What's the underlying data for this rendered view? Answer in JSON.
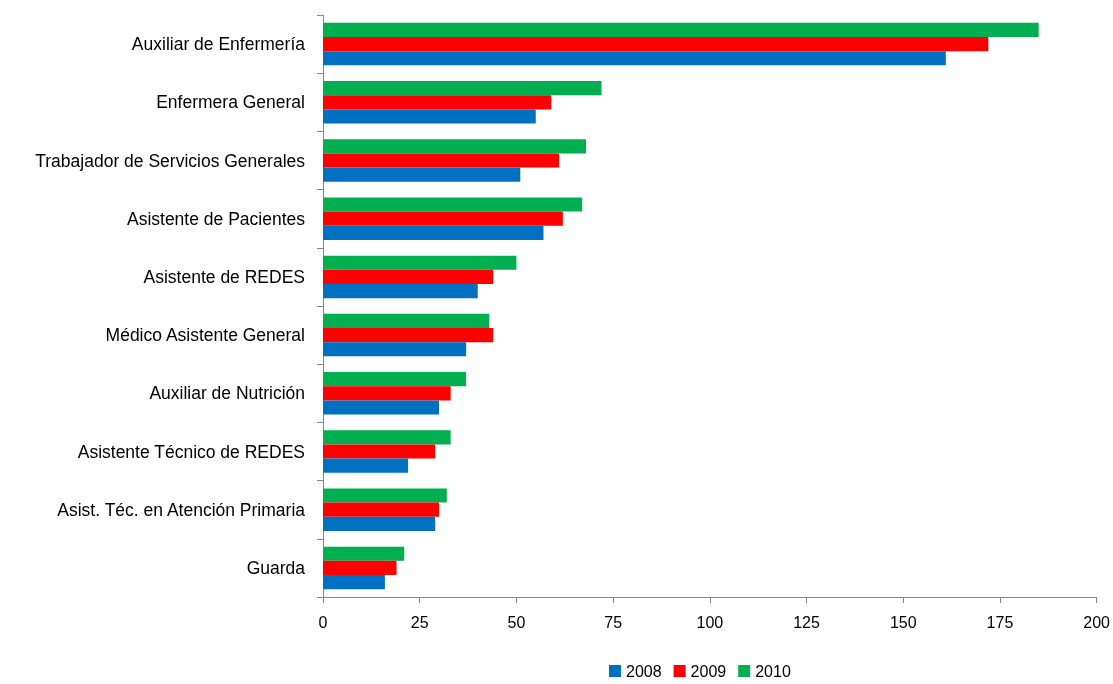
{
  "chart_data": {
    "type": "bar",
    "orientation": "horizontal",
    "categories": [
      "Auxiliar de Enfermería",
      "Enfermera General",
      "Trabajador de Servicios Generales",
      "Asistente de Pacientes",
      "Asistente de REDES",
      "Médico Asistente General",
      "Auxiliar de Nutrición",
      "Asistente Técnico de REDES",
      "Asist. Téc. en Atención Primaria",
      "Guarda"
    ],
    "series": [
      {
        "name": "2008",
        "color": "#0070c0",
        "values": [
          161,
          55,
          51,
          57,
          40,
          37,
          30,
          22,
          29,
          16
        ]
      },
      {
        "name": "2009",
        "color": "#ff0000",
        "values": [
          172,
          59,
          61,
          62,
          44,
          44,
          33,
          29,
          30,
          19
        ]
      },
      {
        "name": "2010",
        "color": "#00b050",
        "values": [
          185,
          72,
          68,
          67,
          50,
          43,
          37,
          33,
          32,
          21
        ]
      }
    ],
    "xlim": [
      0,
      200
    ],
    "xticks": [
      0,
      25,
      50,
      75,
      100,
      125,
      150,
      175,
      200
    ],
    "legend": "bottom"
  }
}
